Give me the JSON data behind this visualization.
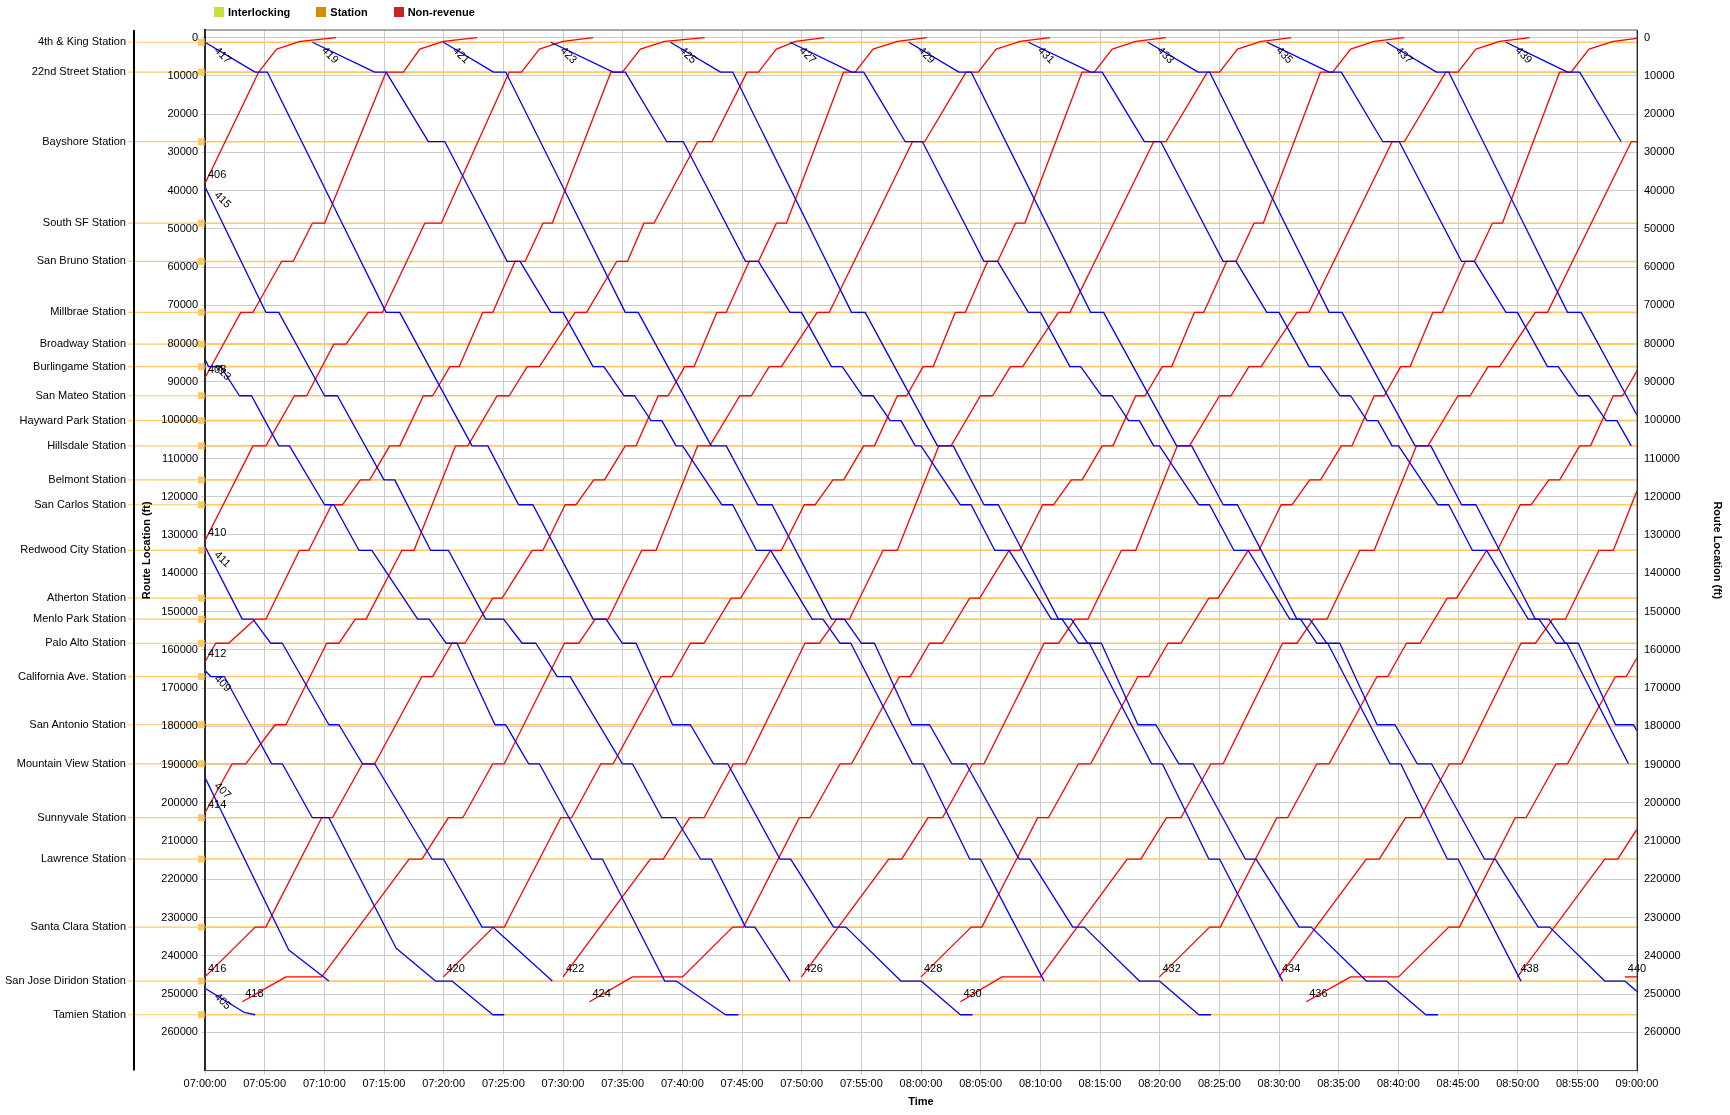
{
  "chart_data": {
    "type": "line",
    "xlabel": "Time",
    "ylabel": "Route Location (ft)",
    "y2label": "Route Location (ft)",
    "xlim": [
      7,
      9
    ],
    "xticks": [
      {
        "value": 7,
        "label": "07:00:00"
      },
      {
        "value": 7.0833,
        "label": "07:05:00"
      },
      {
        "value": 7.1667,
        "label": "07:10:00"
      },
      {
        "value": 7.25,
        "label": "07:15:00"
      },
      {
        "value": 7.3333,
        "label": "07:20:00"
      },
      {
        "value": 7.4167,
        "label": "07:25:00"
      },
      {
        "value": 7.5,
        "label": "07:30:00"
      },
      {
        "value": 7.5833,
        "label": "07:35:00"
      },
      {
        "value": 7.6667,
        "label": "07:40:00"
      },
      {
        "value": 7.75,
        "label": "07:45:00"
      },
      {
        "value": 7.8333,
        "label": "07:50:00"
      },
      {
        "value": 7.9167,
        "label": "07:55:00"
      },
      {
        "value": 8,
        "label": "08:00:00"
      },
      {
        "value": 8.0833,
        "label": "08:05:00"
      },
      {
        "value": 8.1667,
        "label": "08:10:00"
      },
      {
        "value": 8.25,
        "label": "08:15:00"
      },
      {
        "value": 8.3333,
        "label": "08:20:00"
      },
      {
        "value": 8.4167,
        "label": "08:25:00"
      },
      {
        "value": 8.5,
        "label": "08:30:00"
      },
      {
        "value": 8.5833,
        "label": "08:35:00"
      },
      {
        "value": 8.6667,
        "label": "08:40:00"
      },
      {
        "value": 8.75,
        "label": "08:45:00"
      },
      {
        "value": 8.8333,
        "label": "08:50:00"
      },
      {
        "value": 8.9167,
        "label": "08:55:00"
      },
      {
        "value": 9,
        "label": "09:00:00"
      }
    ],
    "ylim": [
      270000,
      -2000
    ],
    "yticks": [
      0,
      10000,
      20000,
      30000,
      40000,
      50000,
      60000,
      70000,
      80000,
      90000,
      100000,
      110000,
      120000,
      130000,
      140000,
      150000,
      160000,
      170000,
      180000,
      190000,
      200000,
      210000,
      220000,
      230000,
      240000,
      250000,
      260000
    ],
    "y2lim": [
      270000,
      -2000
    ],
    "y2ticks": [
      0,
      10000,
      20000,
      30000,
      40000,
      50000,
      60000,
      70000,
      80000,
      90000,
      100000,
      110000,
      120000,
      130000,
      140000,
      150000,
      160000,
      170000,
      180000,
      190000,
      200000,
      210000,
      220000,
      230000,
      240000,
      250000,
      260000
    ],
    "grid": true,
    "legend": "top left",
    "ref_lines": [
      {
        "axis": "y",
        "value": 1200,
        "label": "4th & King Station",
        "color": "#ffc864"
      },
      {
        "axis": "y",
        "value": 9000,
        "label": "22nd Street Station",
        "color": "#ffc864"
      },
      {
        "axis": "y",
        "value": 27200,
        "label": "Bayshore Station",
        "color": "#ffc864"
      },
      {
        "axis": "y",
        "value": 48500,
        "label": "South SF Station",
        "color": "#ffc864"
      },
      {
        "axis": "y",
        "value": 58500,
        "label": "San Bruno Station",
        "color": "#ffc864"
      },
      {
        "axis": "y",
        "value": 71800,
        "label": "Millbrae Station",
        "color": "#ffc864"
      },
      {
        "axis": "y",
        "value": 80100,
        "label": "Broadway Station",
        "color": "#ffc864"
      },
      {
        "axis": "y",
        "value": 86000,
        "label": "Burlingame Station",
        "color": "#ffc864"
      },
      {
        "axis": "y",
        "value": 93600,
        "label": "San Mateo Station",
        "color": "#ffc864"
      },
      {
        "axis": "y",
        "value": 100100,
        "label": "Hayward Park Station",
        "color": "#ffc864"
      },
      {
        "axis": "y",
        "value": 106700,
        "label": "Hillsdale Station",
        "color": "#ffc864"
      },
      {
        "axis": "y",
        "value": 115600,
        "label": "Belmont Station",
        "color": "#ffc864"
      },
      {
        "axis": "y",
        "value": 122100,
        "label": "San Carlos Station",
        "color": "#ffc864"
      },
      {
        "axis": "y",
        "value": 134000,
        "label": "Redwood City Station",
        "color": "#ffc864"
      },
      {
        "axis": "y",
        "value": 146500,
        "label": "Atherton Station",
        "color": "#ffc864"
      },
      {
        "axis": "y",
        "value": 152000,
        "label": "Menlo Park Station",
        "color": "#ffc864"
      },
      {
        "axis": "y",
        "value": 158300,
        "label": "Palo Alto Station",
        "color": "#ffc864"
      },
      {
        "axis": "y",
        "value": 167000,
        "label": "California Ave. Station",
        "color": "#ffc864"
      },
      {
        "axis": "y",
        "value": 179600,
        "label": "San Antonio Station",
        "color": "#ffc864"
      },
      {
        "axis": "y",
        "value": 189800,
        "label": "Mountain View Station",
        "color": "#ffc864"
      },
      {
        "axis": "y",
        "value": 203900,
        "label": "Sunnyvale Station",
        "color": "#ffc864"
      },
      {
        "axis": "y",
        "value": 214700,
        "label": "Lawrence Station",
        "color": "#ffc864"
      },
      {
        "axis": "y",
        "value": 232500,
        "label": "Santa Clara Station",
        "color": "#ffc864"
      },
      {
        "axis": "y",
        "value": 246600,
        "label": "San Jose Diridon Station",
        "color": "#ffc864"
      },
      {
        "axis": "y",
        "value": 255400,
        "label": "Tamien Station",
        "color": "#ffc864"
      }
    ],
    "series": [
      {
        "name": "Interlocking",
        "color": "#c8e03c"
      },
      {
        "name": "Station",
        "color": "#d98c00"
      },
      {
        "name": "Non-revenue",
        "color": "#cc2222"
      },
      {
        "name": "405",
        "color": "#0000ff",
        "x": [
          7,
          7.055,
          7.07
        ],
        "values": [
          248500,
          254800,
          255400
        ]
      },
      {
        "name": "407",
        "color": "#0000ff",
        "x": [
          7,
          7.117,
          7.173
        ],
        "values": [
          193400,
          238500,
          246600
        ]
      },
      {
        "name": "409",
        "color": "#0000ff",
        "x": [
          7,
          7.008,
          7.027,
          7.093,
          7.108,
          7.15,
          7.173,
          7.267,
          7.322,
          7.345,
          7.402,
          7.418
        ],
        "values": [
          165400,
          167000,
          167000,
          189800,
          189800,
          203900,
          203900,
          238000,
          246600,
          246600,
          255400,
          255400
        ]
      },
      {
        "name": "411",
        "color": "#0000ff",
        "x": [
          7,
          7.052,
          7.067,
          7.092,
          7.108,
          7.173,
          7.187,
          7.22,
          7.237,
          7.317,
          7.333,
          7.387,
          7.402,
          7.485
        ],
        "values": [
          133000,
          152000,
          152000,
          158300,
          158300,
          179600,
          179600,
          189800,
          189800,
          214700,
          214700,
          232500,
          232500,
          246600
        ]
      },
      {
        "name": "413",
        "color": "#0000ff",
        "x": [
          7,
          7.005,
          7.022,
          7.048,
          7.065,
          7.103,
          7.118,
          7.167,
          7.18,
          7.215,
          7.233,
          7.297,
          7.313,
          7.337,
          7.352,
          7.405,
          7.42,
          7.452,
          7.467,
          7.54,
          7.555,
          7.642,
          7.658,
          7.727,
          7.745
        ],
        "values": [
          84000,
          86000,
          86000,
          93600,
          93600,
          106700,
          106700,
          122100,
          122100,
          134000,
          134000,
          152000,
          152000,
          158300,
          158300,
          179600,
          179600,
          189800,
          189800,
          214700,
          214700,
          246600,
          246600,
          255400,
          255400
        ]
      },
      {
        "name": "415",
        "color": "#0000ff",
        "x": [
          7,
          7.085,
          7.103,
          7.167,
          7.185,
          7.25,
          7.265,
          7.315,
          7.34,
          7.392,
          7.417,
          7.443,
          7.462,
          7.492,
          7.51,
          7.583,
          7.597,
          7.638,
          7.657,
          7.692,
          7.707,
          7.755,
          7.768,
          7.817
        ],
        "values": [
          39000,
          71800,
          71800,
          93600,
          93600,
          115600,
          115600,
          134000,
          134000,
          152000,
          152000,
          158300,
          158300,
          167000,
          167000,
          189800,
          189800,
          203900,
          203900,
          214700,
          214700,
          232500,
          232500,
          246600
        ]
      },
      {
        "name": "417",
        "color": "#0000ff",
        "x": [
          7,
          7.07,
          7.087,
          7.253,
          7.272,
          7.373,
          7.395,
          7.438,
          7.458,
          7.542,
          7.56,
          7.583,
          7.602,
          7.653,
          7.678,
          7.71,
          7.73,
          7.803,
          7.818,
          7.878,
          7.895,
          7.972,
          8,
          8.055,
          8.072
        ],
        "values": [
          1200,
          9000,
          9000,
          71800,
          71800,
          106700,
          106700,
          122100,
          122100,
          152000,
          152000,
          158300,
          158300,
          179600,
          179600,
          189800,
          189800,
          214700,
          214700,
          232500,
          232500,
          246600,
          246600,
          255400,
          255400
        ]
      },
      {
        "name": "419",
        "color": "#0000ff",
        "x": [
          7.15,
          7.237,
          7.253,
          7.312,
          7.335,
          7.422,
          7.44,
          7.483,
          7.5,
          7.542,
          7.557,
          7.585,
          7.6,
          7.623,
          7.638,
          7.658,
          7.667,
          7.722,
          7.737,
          7.77,
          7.79,
          7.848,
          7.863,
          7.887,
          7.902,
          7.988,
          8.003,
          8.068,
          8.083,
          8.172
        ],
        "values": [
          1200,
          9000,
          9000,
          27200,
          27200,
          58500,
          58500,
          71800,
          71800,
          86000,
          86000,
          93600,
          93600,
          100100,
          100100,
          106700,
          106700,
          122100,
          122100,
          134000,
          134000,
          152000,
          152000,
          158300,
          158300,
          189800,
          189800,
          214700,
          214700,
          246600
        ]
      },
      {
        "name": "421",
        "color": "#0000ff",
        "x": [
          7.333,
          7.403,
          7.42,
          7.587,
          7.605,
          7.707,
          7.728,
          7.772,
          7.792,
          7.875,
          7.893,
          7.917,
          7.935,
          7.987,
          8.012,
          8.043,
          8.063,
          8.137,
          8.152,
          8.212,
          8.228,
          8.305,
          8.333,
          8.388,
          8.405
        ],
        "values": [
          1200,
          9000,
          9000,
          71800,
          71800,
          106700,
          106700,
          122100,
          122100,
          152000,
          152000,
          158300,
          158300,
          179600,
          179600,
          189800,
          189800,
          214700,
          214700,
          232500,
          232500,
          246600,
          246600,
          255400,
          255400
        ]
      },
      {
        "name": "423",
        "color": "#0000ff",
        "x": [
          7.483,
          7.57,
          7.587,
          7.645,
          7.668,
          7.755,
          7.773,
          7.817,
          7.833,
          7.875,
          7.89,
          7.918,
          7.933,
          7.957,
          7.972,
          7.992,
          8,
          8.055,
          8.07,
          8.103,
          8.123,
          8.182,
          8.197,
          8.22,
          8.235,
          8.322,
          8.337,
          8.402,
          8.417,
          8.505
        ],
        "values": [
          1200,
          9000,
          9000,
          27200,
          27200,
          58500,
          58500,
          71800,
          71800,
          86000,
          86000,
          93600,
          93600,
          100100,
          100100,
          106700,
          106700,
          122100,
          122100,
          134000,
          134000,
          152000,
          152000,
          158300,
          158300,
          189800,
          189800,
          214700,
          214700,
          246600
        ]
      },
      {
        "name": "425",
        "color": "#0000ff",
        "x": [
          7.65,
          7.72,
          7.737,
          7.903,
          7.922,
          8.023,
          8.045,
          8.088,
          8.108,
          8.192,
          8.21,
          8.233,
          8.252,
          8.303,
          8.328,
          8.36,
          8.38,
          8.453,
          8.468,
          8.528,
          8.545,
          8.622,
          8.65,
          8.705,
          8.722
        ],
        "values": [
          1200,
          9000,
          9000,
          71800,
          71800,
          106700,
          106700,
          122100,
          122100,
          152000,
          152000,
          158300,
          158300,
          179600,
          179600,
          189800,
          189800,
          214700,
          214700,
          232500,
          232500,
          246600,
          246600,
          255400,
          255400
        ]
      },
      {
        "name": "427",
        "color": "#0000ff",
        "x": [
          7.817,
          7.903,
          7.92,
          7.978,
          8.002,
          8.088,
          8.107,
          8.15,
          8.167,
          8.208,
          8.223,
          8.252,
          8.267,
          8.29,
          8.305,
          8.325,
          8.333,
          8.388,
          8.403,
          8.437,
          8.457,
          8.515,
          8.53,
          8.553,
          8.568,
          8.655,
          8.67,
          8.735,
          8.75,
          8.838
        ],
        "values": [
          1200,
          9000,
          9000,
          27200,
          27200,
          58500,
          58500,
          71800,
          71800,
          86000,
          86000,
          93600,
          93600,
          100100,
          100100,
          106700,
          106700,
          122100,
          122100,
          134000,
          134000,
          152000,
          152000,
          158300,
          158300,
          189800,
          189800,
          214700,
          214700,
          246600
        ]
      },
      {
        "name": "429",
        "color": "#0000ff",
        "x": [
          7.983,
          8.053,
          8.07,
          8.237,
          8.255,
          8.357,
          8.378,
          8.422,
          8.442,
          8.525,
          8.543,
          8.567,
          8.585,
          8.637,
          8.662,
          8.693,
          8.713,
          8.787,
          8.802,
          8.862,
          8.878,
          8.955,
          8.983,
          9
        ],
        "values": [
          1200,
          9000,
          9000,
          71800,
          71800,
          106700,
          106700,
          122100,
          122100,
          152000,
          152000,
          158300,
          158300,
          179600,
          179600,
          189800,
          189800,
          214700,
          214700,
          232500,
          232500,
          246600,
          246600,
          249300
        ]
      },
      {
        "name": "431",
        "color": "#0000ff",
        "x": [
          8.15,
          8.237,
          8.253,
          8.312,
          8.335,
          8.422,
          8.44,
          8.483,
          8.5,
          8.542,
          8.557,
          8.585,
          8.6,
          8.623,
          8.638,
          8.658,
          8.667,
          8.722,
          8.737,
          8.77,
          8.79,
          8.848,
          8.863,
          8.887,
          8.902,
          8.988
        ],
        "values": [
          1200,
          9000,
          9000,
          27200,
          27200,
          58500,
          58500,
          71800,
          71800,
          86000,
          86000,
          93600,
          93600,
          100100,
          100100,
          106700,
          106700,
          122100,
          122100,
          134000,
          134000,
          152000,
          152000,
          158300,
          158300,
          189800
        ]
      },
      {
        "name": "433",
        "color": "#0000ff",
        "x": [
          8.317,
          8.387,
          8.403,
          8.57,
          8.588,
          8.69,
          8.712,
          8.755,
          8.775,
          8.858,
          8.877,
          8.9,
          8.918,
          8.97,
          8.995,
          9
        ],
        "values": [
          1200,
          9000,
          9000,
          71800,
          71800,
          106700,
          106700,
          122100,
          122100,
          152000,
          152000,
          158300,
          158300,
          179600,
          179600,
          181200
        ]
      },
      {
        "name": "435",
        "color": "#0000ff",
        "x": [
          8.483,
          8.57,
          8.587,
          8.645,
          8.668,
          8.755,
          8.773,
          8.817,
          8.833,
          8.875,
          8.89,
          8.918,
          8.933,
          8.957,
          8.972,
          8.992
        ],
        "values": [
          1200,
          9000,
          9000,
          27200,
          27200,
          58500,
          58500,
          71800,
          71800,
          86000,
          86000,
          93600,
          93600,
          100100,
          100100,
          106700
        ]
      },
      {
        "name": "437",
        "color": "#0000ff",
        "x": [
          8.65,
          8.72,
          8.737,
          8.903,
          8.922,
          9
        ],
        "values": [
          1200,
          9000,
          9000,
          71800,
          71800,
          98700
        ]
      },
      {
        "name": "439",
        "color": "#0000ff",
        "x": [
          8.817,
          8.903,
          8.92,
          8.978
        ],
        "values": [
          1200,
          9000,
          9000,
          27200
        ]
      },
      {
        "name": "406",
        "color": "#ff0000",
        "x": [
          7,
          7.075,
          7.1,
          7.133,
          7.183
        ],
        "values": [
          38100,
          9000,
          3000,
          1000,
          0
        ]
      },
      {
        "name": "408",
        "color": "#ff0000",
        "x": [
          7,
          7.05,
          7.067,
          7.107,
          7.123,
          7.15,
          7.167,
          7.253,
          7.277,
          7.3,
          7.333,
          7.38
        ],
        "values": [
          88900,
          71800,
          71800,
          58500,
          58500,
          48500,
          48500,
          9000,
          9000,
          3000,
          1000,
          0
        ]
      },
      {
        "name": "410",
        "color": "#ff0000",
        "x": [
          7,
          7.067,
          7.085,
          7.125,
          7.142,
          7.18,
          7.197,
          7.228,
          7.248,
          7.307,
          7.33,
          7.425,
          7.442,
          7.467,
          7.5,
          7.542
        ],
        "values": [
          131500,
          106700,
          106700,
          93600,
          93600,
          80100,
          80100,
          71800,
          71800,
          48500,
          48500,
          9000,
          9000,
          3000,
          1000,
          0
        ]
      },
      {
        "name": "412",
        "color": "#ff0000",
        "x": [
          7,
          7.015,
          7.033,
          7.07,
          7.085,
          7.132,
          7.145,
          7.177,
          7.192,
          7.217,
          7.23,
          7.258,
          7.272,
          7.305,
          7.318,
          7.342,
          7.355,
          7.388,
          7.402,
          7.433,
          7.447,
          7.472,
          7.485,
          7.567,
          7.583,
          7.608,
          7.642,
          7.698
        ],
        "values": [
          163200,
          158300,
          158300,
          152000,
          152000,
          134000,
          134000,
          122100,
          122100,
          115600,
          115600,
          106700,
          106700,
          93600,
          93600,
          86000,
          86000,
          71800,
          71800,
          58500,
          58500,
          48500,
          48500,
          9000,
          9000,
          3000,
          1000,
          0
        ]
      },
      {
        "name": "414",
        "color": "#ff0000",
        "x": [
          7,
          7.038,
          7.057,
          7.098,
          7.113,
          7.17,
          7.187,
          7.21,
          7.225,
          7.275,
          7.292,
          7.35,
          7.367,
          7.408,
          7.425,
          7.45,
          7.467,
          7.517,
          7.533,
          7.575,
          7.59,
          7.613,
          7.627,
          7.688,
          7.708,
          7.757,
          7.773,
          7.798,
          7.825,
          7.865
        ],
        "values": [
          202600,
          189800,
          189800,
          179600,
          179600,
          158300,
          158300,
          152000,
          152000,
          134000,
          134000,
          106700,
          106700,
          93600,
          93600,
          86000,
          86000,
          71800,
          71800,
          58500,
          58500,
          48500,
          48500,
          27200,
          27200,
          9000,
          9000,
          3000,
          1000,
          0
        ]
      },
      {
        "name": "416",
        "color": "#ff0000",
        "x": [
          7,
          7.07,
          7.085,
          7.163,
          7.178,
          7.22,
          7.237,
          7.303,
          7.318,
          7.345,
          7.363,
          7.402,
          7.415,
          7.457,
          7.472,
          7.503,
          7.518,
          7.543,
          7.558,
          7.587,
          7.602,
          7.633,
          7.647,
          7.67,
          7.683,
          7.715,
          7.728,
          7.76,
          7.773,
          7.798,
          7.812,
          7.892,
          7.908,
          7.933,
          7.967,
          8.008
        ],
        "values": [
          245500,
          232500,
          232500,
          203900,
          203900,
          189800,
          189800,
          167000,
          167000,
          158300,
          158300,
          146500,
          146500,
          134000,
          134000,
          122100,
          122100,
          115600,
          115600,
          106700,
          106700,
          93600,
          93600,
          86000,
          86000,
          71800,
          71800,
          58500,
          58500,
          48500,
          48500,
          9000,
          9000,
          3000,
          1000,
          0
        ]
      },
      {
        "name": "418",
        "color": "#ff0000",
        "x": [
          7.052,
          7.113,
          7.163,
          7.285,
          7.303,
          7.34,
          7.36,
          7.402,
          7.418,
          7.502,
          7.522,
          7.545,
          7.563,
          7.61,
          7.63,
          7.688,
          7.705,
          7.747,
          7.763,
          7.788,
          7.805,
          7.855,
          7.872,
          7.988,
          8.005,
          8.063,
          8.08,
          8.105,
          8.138,
          8.18
        ],
        "values": [
          252000,
          245500,
          245500,
          214700,
          214700,
          203900,
          203900,
          189800,
          189800,
          158300,
          158300,
          152000,
          152000,
          134000,
          134000,
          106700,
          106700,
          93600,
          93600,
          86000,
          86000,
          71800,
          71800,
          27200,
          27200,
          9000,
          9000,
          3000,
          1000,
          0
        ]
      },
      {
        "name": "420",
        "color": "#ff0000",
        "x": [
          7.333,
          7.403,
          7.418,
          7.497,
          7.512,
          7.553,
          7.57,
          7.637,
          7.652,
          7.678,
          7.697,
          7.735,
          7.748,
          7.79,
          7.805,
          7.837,
          7.852,
          7.877,
          7.892,
          7.92,
          7.935,
          7.967,
          7.98,
          8.003,
          8.017,
          8.048,
          8.062,
          8.093,
          8.107,
          8.132,
          8.145,
          8.225,
          8.242,
          8.267,
          8.3,
          8.342
        ],
        "values": [
          245500,
          232500,
          232500,
          203900,
          203900,
          189800,
          189800,
          167000,
          167000,
          158300,
          158300,
          146500,
          146500,
          134000,
          134000,
          122100,
          122100,
          115600,
          115600,
          106700,
          106700,
          93600,
          93600,
          86000,
          86000,
          71800,
          71800,
          58500,
          58500,
          48500,
          48500,
          9000,
          9000,
          3000,
          1000,
          0
        ]
      },
      {
        "name": "422",
        "color": "#ff0000",
        "x": [
          7.5,
          7.622,
          7.64,
          7.677,
          7.697,
          7.738,
          7.755,
          7.838,
          7.858,
          7.882,
          7.9,
          7.947,
          7.967,
          8.025,
          8.042,
          8.083,
          8.1,
          8.125,
          8.142,
          8.192,
          8.208,
          8.325,
          8.342,
          8.4,
          8.417,
          8.442,
          8.475,
          8.517
        ],
        "values": [
          245500,
          214700,
          214700,
          203900,
          203900,
          189800,
          189800,
          158300,
          158300,
          152000,
          152000,
          134000,
          134000,
          106700,
          106700,
          93600,
          93600,
          86000,
          86000,
          71800,
          71800,
          27200,
          27200,
          9000,
          9000,
          3000,
          1000,
          0
        ]
      },
      {
        "name": "424",
        "color": "#ff0000",
        "x": [
          7.537,
          7.597,
          7.667,
          7.737,
          7.752,
          7.83,
          7.845,
          7.887,
          7.903,
          7.97,
          7.985,
          8.012,
          8.03,
          8.068,
          8.082,
          8.123,
          8.138,
          8.17,
          8.185,
          8.21,
          8.225,
          8.253,
          8.268,
          8.3,
          8.313,
          8.337,
          8.35,
          8.382,
          8.395,
          8.427,
          8.44,
          8.465,
          8.478,
          8.558,
          8.575,
          8.6,
          8.633,
          8.675
        ],
        "values": [
          252000,
          245500,
          245500,
          232500,
          232500,
          203900,
          203900,
          189800,
          189800,
          167000,
          167000,
          158300,
          158300,
          146500,
          146500,
          134000,
          134000,
          122100,
          122100,
          115600,
          115600,
          106700,
          106700,
          93600,
          93600,
          86000,
          86000,
          71800,
          71800,
          58500,
          58500,
          48500,
          48500,
          9000,
          9000,
          3000,
          1000,
          0
        ]
      },
      {
        "name": "426",
        "color": "#ff0000",
        "x": [
          7.833,
          7.955,
          7.973,
          8.01,
          8.03,
          8.072,
          8.088,
          8.172,
          8.192,
          8.215,
          8.233,
          8.28,
          8.3,
          8.358,
          8.375,
          8.417,
          8.433,
          8.458,
          8.475,
          8.525,
          8.542,
          8.658,
          8.675,
          8.733,
          8.75,
          8.775,
          8.808,
          8.85
        ],
        "values": [
          245500,
          214700,
          214700,
          203900,
          203900,
          189800,
          189800,
          158300,
          158300,
          152000,
          152000,
          134000,
          134000,
          106700,
          106700,
          93600,
          93600,
          86000,
          86000,
          71800,
          71800,
          27200,
          27200,
          9000,
          9000,
          3000,
          1000,
          0
        ]
      },
      {
        "name": "428",
        "color": "#ff0000",
        "x": [
          8,
          8.07,
          8.085,
          8.163,
          8.178,
          8.22,
          8.237,
          8.303,
          8.318,
          8.345,
          8.363,
          8.402,
          8.415,
          8.457,
          8.472,
          8.503,
          8.518,
          8.543,
          8.558,
          8.587,
          8.602,
          8.633,
          8.647,
          8.67,
          8.683,
          8.715,
          8.728,
          8.76,
          8.773,
          8.798,
          8.812,
          8.892,
          8.908,
          8.933,
          8.967,
          9
        ],
        "values": [
          245500,
          232500,
          232500,
          203900,
          203900,
          189800,
          189800,
          167000,
          167000,
          158300,
          158300,
          146500,
          146500,
          134000,
          134000,
          122100,
          122100,
          115600,
          115600,
          106700,
          106700,
          93600,
          93600,
          86000,
          86000,
          71800,
          71800,
          58500,
          58500,
          48500,
          48500,
          9000,
          9000,
          3000,
          1000,
          200
        ]
      },
      {
        "name": "430",
        "color": "#ff0000",
        "x": [
          8.055,
          8.113,
          8.167,
          8.288,
          8.307,
          8.343,
          8.363,
          8.405,
          8.422,
          8.505,
          8.525,
          8.548,
          8.567,
          8.613,
          8.633,
          8.692,
          8.708,
          8.75,
          8.767,
          8.792,
          8.808,
          8.858,
          8.875,
          8.992,
          9
        ],
        "values": [
          252000,
          245500,
          245500,
          214700,
          214700,
          203900,
          203900,
          189800,
          189800,
          158300,
          158300,
          152000,
          152000,
          134000,
          134000,
          106700,
          106700,
          93600,
          93600,
          86000,
          86000,
          71800,
          71800,
          27200,
          27200
        ]
      },
      {
        "name": "432",
        "color": "#ff0000",
        "x": [
          8.333,
          8.403,
          8.418,
          8.497,
          8.512,
          8.553,
          8.57,
          8.637,
          8.652,
          8.678,
          8.697,
          8.735,
          8.748,
          8.79,
          8.805,
          8.837,
          8.852,
          8.877,
          8.892,
          8.92,
          8.935,
          8.967,
          8.98,
          9
        ],
        "values": [
          245500,
          232500,
          232500,
          203900,
          203900,
          189800,
          189800,
          167000,
          167000,
          158300,
          158300,
          146500,
          146500,
          134000,
          134000,
          122100,
          122100,
          115600,
          115600,
          106700,
          106700,
          93600,
          93600,
          87100
        ]
      },
      {
        "name": "434",
        "color": "#ff0000",
        "x": [
          8.5,
          8.622,
          8.64,
          8.677,
          8.697,
          8.738,
          8.755,
          8.838,
          8.858,
          8.882,
          8.9,
          8.947,
          8.967,
          9
        ],
        "values": [
          245500,
          214700,
          214700,
          203900,
          203900,
          189800,
          189800,
          158300,
          158300,
          152000,
          152000,
          134000,
          134000,
          118400
        ]
      },
      {
        "name": "436",
        "color": "#ff0000",
        "x": [
          8.538,
          8.6,
          8.667,
          8.737,
          8.752,
          8.83,
          8.845,
          8.887,
          8.903,
          8.97,
          8.985,
          9
        ],
        "values": [
          252000,
          245500,
          245500,
          232500,
          232500,
          203900,
          203900,
          189800,
          189800,
          167000,
          167000,
          162100
        ]
      },
      {
        "name": "438",
        "color": "#ff0000",
        "x": [
          8.833,
          8.955,
          8.973,
          9
        ],
        "values": [
          245500,
          214700,
          214700,
          206900
        ]
      },
      {
        "name": "440",
        "color": "#ff0000",
        "x": [
          8.983,
          9
        ],
        "values": [
          245500,
          245500
        ]
      }
    ]
  }
}
